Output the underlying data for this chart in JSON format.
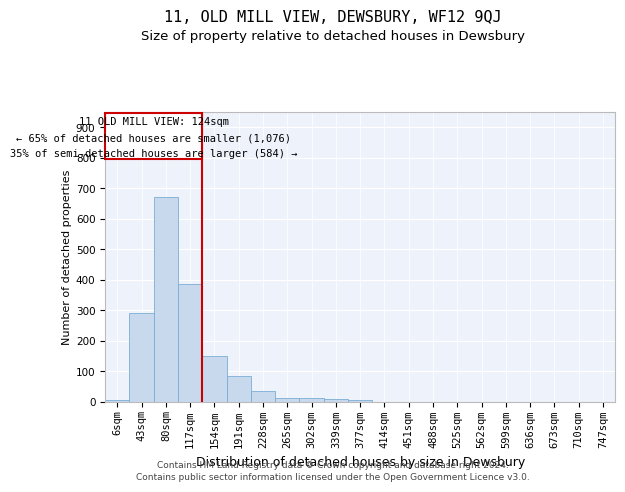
{
  "title": "11, OLD MILL VIEW, DEWSBURY, WF12 9QJ",
  "subtitle": "Size of property relative to detached houses in Dewsbury",
  "xlabel": "Distribution of detached houses by size in Dewsbury",
  "ylabel": "Number of detached properties",
  "bar_color": "#c8d9ee",
  "bar_edge_color": "#7aadd4",
  "background_color": "#ffffff",
  "plot_bg_color": "#eef2fb",
  "grid_color": "#ffffff",
  "annotation_box_color": "#cc0000",
  "annotation_line_color": "#cc0000",
  "categories": [
    "6sqm",
    "43sqm",
    "80sqm",
    "117sqm",
    "154sqm",
    "191sqm",
    "228sqm",
    "265sqm",
    "302sqm",
    "339sqm",
    "377sqm",
    "414sqm",
    "451sqm",
    "488sqm",
    "525sqm",
    "562sqm",
    "599sqm",
    "636sqm",
    "673sqm",
    "710sqm",
    "747sqm"
  ],
  "values": [
    8,
    292,
    672,
    388,
    152,
    86,
    37,
    14,
    13,
    10,
    8,
    0,
    0,
    0,
    0,
    0,
    0,
    0,
    0,
    0,
    0
  ],
  "ylim": [
    0,
    950
  ],
  "yticks": [
    0,
    100,
    200,
    300,
    400,
    500,
    600,
    700,
    800,
    900
  ],
  "property_line_x": 3.5,
  "annotation_text_line1": "11 OLD MILL VIEW: 124sqm",
  "annotation_text_line2": "← 65% of detached houses are smaller (1,076)",
  "annotation_text_line3": "35% of semi-detached houses are larger (584) →",
  "footer_line1": "Contains HM Land Registry data © Crown copyright and database right 2024.",
  "footer_line2": "Contains public sector information licensed under the Open Government Licence v3.0.",
  "title_fontsize": 11,
  "subtitle_fontsize": 9.5,
  "xlabel_fontsize": 9,
  "ylabel_fontsize": 8,
  "tick_fontsize": 7.5,
  "annotation_fontsize": 7.5,
  "footer_fontsize": 6.5
}
